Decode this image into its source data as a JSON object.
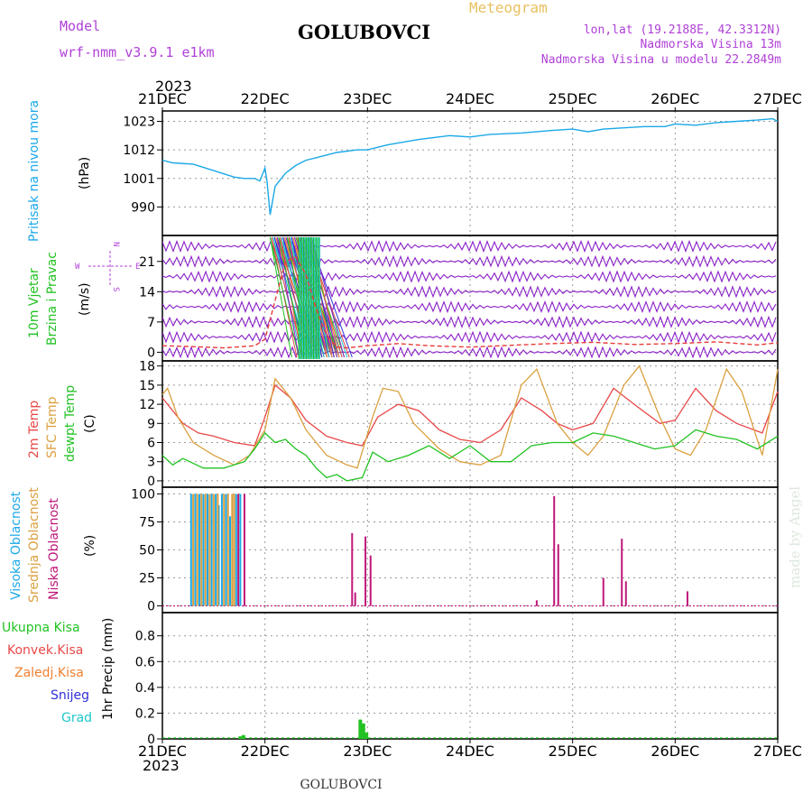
{
  "header": {
    "model_label": "Model",
    "model_name": "wrf-nmm_v3.9.1 e1km",
    "station": "GOLUBOVCI",
    "product": "Meteogram",
    "lonlat": "lon,lat (19.2188E, 42.3312N)",
    "altitude": "Nadmorska Visina 13m",
    "model_altitude": "Nadmorska Visina u modelu 22.2849m",
    "year": "2023",
    "footer_station": "GOLUBOVCI",
    "credit": "made by Angel"
  },
  "colors": {
    "pressure": "#1ba8e8",
    "wind_barbs": "#8a1fc8",
    "wind_speed": "#e83a3a",
    "t2m": "#e84848",
    "tsfc": "#dba040",
    "dewpt": "#22c222",
    "cloud_high": "#1ba8e8",
    "cloud_mid": "#dba040",
    "cloud_low": "#c0167a",
    "rain_total": "#22c222",
    "rain_conv": "#e84848",
    "rain_frozen": "#f08030",
    "snow": "#3030d8",
    "hail": "#20c8c8"
  },
  "chart_data": [
    {
      "type": "line",
      "panel": "pressure",
      "ylabel_main": "Pritisak na nivou mora",
      "ylabel_unit": "(hPa)",
      "x_ticks": [
        "21DEC",
        "22DEC",
        "23DEC",
        "24DEC",
        "25DEC",
        "26DEC",
        "27DEC"
      ],
      "x_range_days": [
        0,
        6
      ],
      "ylim": [
        979,
        1027
      ],
      "y_ticks": [
        990,
        1001,
        1012,
        1023
      ],
      "series": [
        {
          "x": [
            0,
            0.1,
            0.3,
            0.5,
            0.7,
            0.8,
            0.9,
            0.95,
            1.0,
            1.02,
            1.05,
            1.1,
            1.2,
            1.3,
            1.4,
            1.5,
            1.7,
            1.9,
            2.0,
            2.2,
            2.5,
            2.8,
            3.0,
            3.2,
            3.5,
            3.8,
            4.0,
            4.15,
            4.3,
            4.5,
            4.7,
            4.9,
            5.0,
            5.2,
            5.4,
            5.6,
            5.8,
            5.95,
            6.0
          ],
          "y": [
            1008,
            1007,
            1006.5,
            1004,
            1001.5,
            1001,
            1001,
            1000,
            1005,
            1000,
            987,
            998,
            1003,
            1006,
            1008,
            1009,
            1011,
            1012,
            1012,
            1014,
            1016,
            1017.5,
            1017,
            1018,
            1018.5,
            1019.5,
            1020,
            1019,
            1020,
            1020.5,
            1021,
            1021,
            1022,
            1021.5,
            1022.5,
            1023,
            1023.5,
            1024,
            1023
          ]
        }
      ]
    },
    {
      "type": "line",
      "panel": "wind",
      "ylabel_main": "10m Vjetar",
      "ylabel_sub": "Brzina i Pravac",
      "ylabel_unit": "(m/s)",
      "compass": [
        "N",
        "E",
        "S",
        "W"
      ],
      "ylim": [
        -2,
        27
      ],
      "y_ticks": [
        0,
        7,
        14,
        21
      ],
      "series": [
        {
          "name": "wind_speed",
          "x": [
            0,
            0.3,
            0.6,
            0.9,
            1.0,
            1.1,
            1.2,
            1.3,
            1.4,
            1.5,
            1.6,
            1.7,
            1.8,
            2.0,
            2.3,
            2.6,
            3.0,
            3.4,
            3.8,
            4.2,
            4.6,
            5.0,
            5.4,
            5.8,
            6.0
          ],
          "y": [
            1.5,
            1.3,
            1.0,
            1.5,
            3,
            12,
            21,
            22,
            18,
            10,
            4,
            1.2,
            1.0,
            1.5,
            2.0,
            1.5,
            1.2,
            1.6,
            2.0,
            2.3,
            1.8,
            2.0,
            2.4,
            1.7,
            2.2
          ]
        }
      ]
    },
    {
      "type": "line",
      "panel": "temperature",
      "legend": [
        "2m Temp",
        "SFC Temp",
        "dewpt Temp"
      ],
      "ylabel_unit": "(C)",
      "ylim": [
        -1,
        18.8
      ],
      "y_ticks": [
        0,
        3,
        6,
        9,
        12,
        15,
        18
      ],
      "series": [
        {
          "name": "2m Temp",
          "x": [
            0,
            0.1,
            0.2,
            0.35,
            0.5,
            0.7,
            0.9,
            1.0,
            1.1,
            1.25,
            1.4,
            1.6,
            1.8,
            1.95,
            2.1,
            2.3,
            2.5,
            2.7,
            2.9,
            3.1,
            3.3,
            3.5,
            3.7,
            3.85,
            4.0,
            4.2,
            4.4,
            4.6,
            4.85,
            5.0,
            5.2,
            5.4,
            5.6,
            5.85,
            6.0
          ],
          "y": [
            13,
            11,
            9,
            7.5,
            7,
            6,
            5.5,
            10,
            15,
            13,
            9.5,
            7,
            6,
            5.5,
            10,
            12,
            11,
            8,
            6.5,
            6,
            8,
            13,
            11,
            9,
            8,
            9,
            14.5,
            12,
            9,
            9.5,
            14.5,
            11,
            9,
            7.5,
            14
          ]
        },
        {
          "name": "SFC Temp",
          "x": [
            0,
            0.05,
            0.15,
            0.3,
            0.5,
            0.7,
            0.85,
            1.0,
            1.1,
            1.25,
            1.4,
            1.6,
            1.8,
            1.9,
            2.05,
            2.15,
            2.3,
            2.45,
            2.7,
            2.9,
            3.1,
            3.3,
            3.5,
            3.65,
            3.85,
            4.0,
            4.15,
            4.3,
            4.5,
            4.65,
            4.85,
            5.0,
            5.15,
            5.3,
            5.5,
            5.65,
            5.85,
            6.0
          ],
          "y": [
            13.5,
            14.5,
            10,
            6,
            4,
            2.5,
            4,
            8,
            16,
            13,
            8,
            4,
            2.5,
            2,
            10,
            14.5,
            14,
            9,
            5,
            3,
            2.5,
            4,
            15,
            17.5,
            9,
            6,
            4,
            7,
            15,
            18,
            10,
            5,
            4,
            8,
            17.5,
            14,
            4,
            17.5
          ]
        },
        {
          "name": "dewpt Temp",
          "x": [
            0,
            0.1,
            0.2,
            0.4,
            0.6,
            0.8,
            0.9,
            1.0,
            1.1,
            1.2,
            1.3,
            1.4,
            1.5,
            1.6,
            1.7,
            1.8,
            1.95,
            2.05,
            2.2,
            2.4,
            2.6,
            2.8,
            3.0,
            3.2,
            3.4,
            3.6,
            3.8,
            4.0,
            4.2,
            4.4,
            4.6,
            4.8,
            5.0,
            5.2,
            5.4,
            5.6,
            5.8,
            6.0
          ],
          "y": [
            4,
            2.5,
            3.5,
            2,
            2,
            3,
            5,
            7.5,
            6,
            6.5,
            5,
            4,
            2,
            0.5,
            1,
            0,
            0.5,
            4.5,
            3,
            4,
            5.5,
            3.5,
            5.5,
            3,
            3,
            5.5,
            6,
            6,
            7.5,
            7,
            6,
            5,
            5.5,
            8,
            7,
            6.5,
            5,
            7
          ]
        }
      ]
    },
    {
      "type": "bar",
      "panel": "clouds",
      "legend": [
        "Visoka Oblacnost",
        "Srednja Oblacnost",
        "Niska Oblacnost"
      ],
      "ylabel_unit": "(%)",
      "ylim": [
        -6,
        106
      ],
      "y_ticks": [
        0,
        25,
        50,
        75,
        100
      ],
      "series": [
        {
          "name": "Visoka Oblacnost",
          "x": [
            0.28,
            0.32,
            0.36,
            0.4,
            0.44,
            0.48,
            0.52,
            0.55,
            0.58,
            0.62,
            0.66,
            0.72,
            0.76
          ],
          "values": [
            100,
            100,
            100,
            100,
            100,
            100,
            100,
            90,
            100,
            100,
            80,
            100,
            100
          ]
        },
        {
          "name": "Srednja Oblacnost",
          "x": [
            0.3,
            0.34,
            0.38,
            0.42,
            0.46,
            0.5,
            0.54,
            0.6,
            0.64,
            0.68,
            0.7
          ],
          "values": [
            100,
            100,
            100,
            100,
            100,
            100,
            100,
            100,
            100,
            100,
            100
          ]
        },
        {
          "name": "Niska Oblacnost",
          "x": [
            0.74,
            0.8,
            1.85,
            1.88,
            1.98,
            2.03,
            3.65,
            3.82,
            3.86,
            4.3,
            4.48,
            4.52,
            5.12
          ],
          "values": [
            100,
            100,
            65,
            12,
            62,
            45,
            5,
            98,
            55,
            25,
            60,
            22,
            13
          ]
        }
      ]
    },
    {
      "type": "bar",
      "panel": "precipitation",
      "legend": [
        "Ukupna Kisa",
        "Konvek.Kisa",
        "Zaledj.Kisa",
        "Snijeg",
        "Grad"
      ],
      "ylabel_unit": "1hr Precip (mm)",
      "ylim": [
        0,
        0.98
      ],
      "y_ticks": [
        0,
        0.2,
        0.4,
        0.6,
        0.8
      ],
      "series": [
        {
          "name": "Ukupna Kisa",
          "x": [
            0.76,
            0.79,
            1.93,
            1.96,
            1.99
          ],
          "values": [
            0.02,
            0.03,
            0.15,
            0.12,
            0.05
          ]
        }
      ]
    }
  ]
}
